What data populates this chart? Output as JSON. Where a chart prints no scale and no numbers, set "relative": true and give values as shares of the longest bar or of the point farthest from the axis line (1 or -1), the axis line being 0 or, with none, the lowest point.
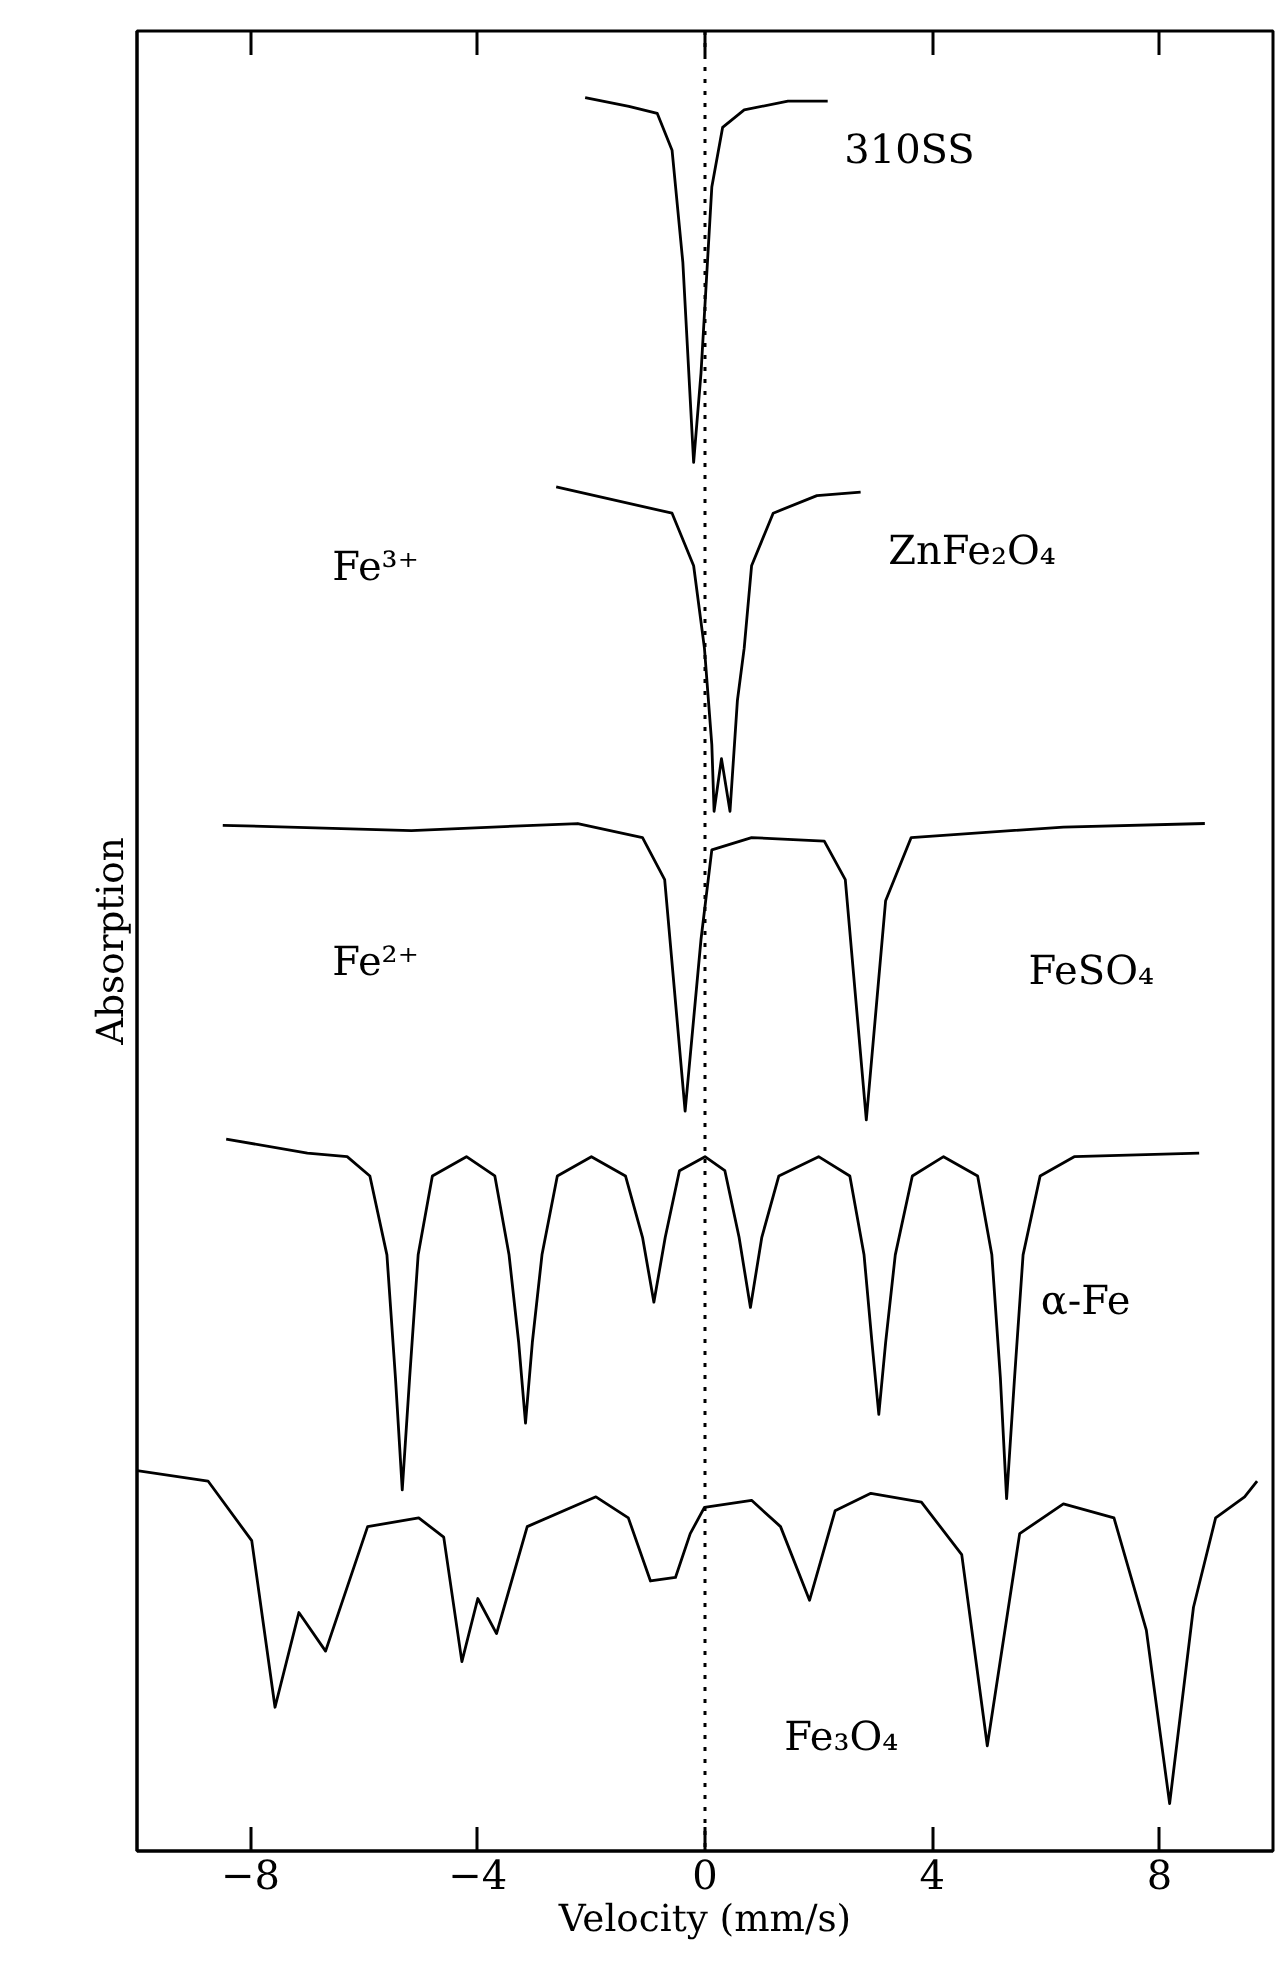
{
  "chart_data": {
    "type": "line",
    "relative": true,
    "xlabel": "Velocity (mm/s)",
    "ylabel": "Absorption",
    "xlim": [
      -10,
      10
    ],
    "xticks": [
      {
        "value": -8,
        "label": "−8"
      },
      {
        "value": -4,
        "label": "−4"
      },
      0,
      4,
      8
    ],
    "grid": false,
    "marker": "none",
    "line_style": "solid",
    "series": [
      {
        "name": "310SS",
        "color": "#000000",
        "x": [
          -2.11,
          -1.34,
          -0.84,
          -0.58,
          -0.39,
          -0.2,
          -0.07,
          0.12,
          0.31,
          0.69,
          1.46,
          2.16
        ],
        "values": [
          1.0,
          0.995,
          0.991,
          0.97,
          0.906,
          0.792,
          0.843,
          0.949,
          0.983,
          0.993,
          0.998,
          0.998
        ]
      },
      {
        "name": "ZnFe₂O₄",
        "color": "#000000",
        "x": [
          -2.62,
          -0.58,
          -0.2,
          -0.01,
          0.12,
          0.16,
          0.29,
          0.44,
          0.57,
          0.69,
          0.82,
          1.2,
          1.97,
          2.74
        ],
        "values": [
          0.778,
          0.763,
          0.733,
          0.686,
          0.631,
          0.593,
          0.623,
          0.593,
          0.656,
          0.686,
          0.733,
          0.763,
          0.773,
          0.775
        ]
      },
      {
        "name": "FeSO₄",
        "color": "#000000",
        "x": [
          -8.49,
          -5.17,
          -2.24,
          -1.1,
          -0.71,
          -0.35,
          -0.07,
          0.12,
          0.82,
          2.1,
          2.47,
          2.84,
          3.18,
          3.63,
          6.31,
          8.8
        ],
        "values": [
          0.585,
          0.582,
          0.586,
          0.578,
          0.554,
          0.422,
          0.52,
          0.571,
          0.578,
          0.576,
          0.554,
          0.417,
          0.542,
          0.578,
          0.584,
          0.586
        ]
      },
      {
        "name": "α-Fe",
        "color": "#000000",
        "x": [
          -8.43,
          -7.0,
          -6.3,
          -5.9,
          -5.6,
          -5.45,
          -5.33,
          -5.2,
          -5.05,
          -4.8,
          -4.2,
          -3.7,
          -3.45,
          -3.28,
          -3.16,
          -3.04,
          -2.87,
          -2.6,
          -2.0,
          -1.4,
          -1.1,
          -0.9,
          -0.7,
          -0.45,
          0.0,
          0.35,
          0.6,
          0.8,
          1.0,
          1.3,
          2.0,
          2.55,
          2.8,
          2.94,
          3.06,
          3.18,
          3.35,
          3.65,
          4.2,
          4.8,
          5.05,
          5.2,
          5.31,
          5.45,
          5.6,
          5.9,
          6.5,
          8.7
        ],
        "values": [
          0.406,
          0.398,
          0.396,
          0.385,
          0.34,
          0.27,
          0.206,
          0.27,
          0.34,
          0.385,
          0.396,
          0.385,
          0.34,
          0.29,
          0.244,
          0.29,
          0.34,
          0.385,
          0.396,
          0.385,
          0.35,
          0.313,
          0.35,
          0.388,
          0.396,
          0.388,
          0.35,
          0.31,
          0.35,
          0.385,
          0.396,
          0.385,
          0.34,
          0.29,
          0.249,
          0.29,
          0.34,
          0.385,
          0.396,
          0.385,
          0.34,
          0.27,
          0.201,
          0.27,
          0.34,
          0.385,
          0.396,
          0.398
        ]
      },
      {
        "name": "Fe₃O₄",
        "color": "#000000",
        "x": [
          -10.0,
          -8.75,
          -7.98,
          -7.57,
          -7.15,
          -6.68,
          -5.94,
          -5.04,
          -4.6,
          -4.28,
          -4.0,
          -3.67,
          -3.13,
          -1.92,
          -1.35,
          -0.96,
          -0.52,
          -0.26,
          -0.01,
          0.82,
          1.33,
          1.84,
          2.29,
          2.92,
          3.81,
          4.52,
          4.97,
          5.54,
          6.31,
          7.2,
          7.77,
          8.18,
          8.6,
          8.99,
          9.5,
          9.72
        ],
        "values": [
          0.217,
          0.211,
          0.177,
          0.082,
          0.136,
          0.114,
          0.185,
          0.19,
          0.179,
          0.108,
          0.144,
          0.124,
          0.185,
          0.202,
          0.19,
          0.154,
          0.156,
          0.181,
          0.196,
          0.2,
          0.185,
          0.143,
          0.194,
          0.204,
          0.199,
          0.169,
          0.06,
          0.181,
          0.198,
          0.19,
          0.126,
          0.027,
          0.139,
          0.19,
          0.202,
          0.211
        ]
      }
    ],
    "ref_lines": [
      {
        "axis": "x",
        "value": 0,
        "line_style": "dotted",
        "color": "#000000"
      }
    ],
    "annotations": [
      "Fe³⁺",
      "Fe²⁺"
    ]
  }
}
